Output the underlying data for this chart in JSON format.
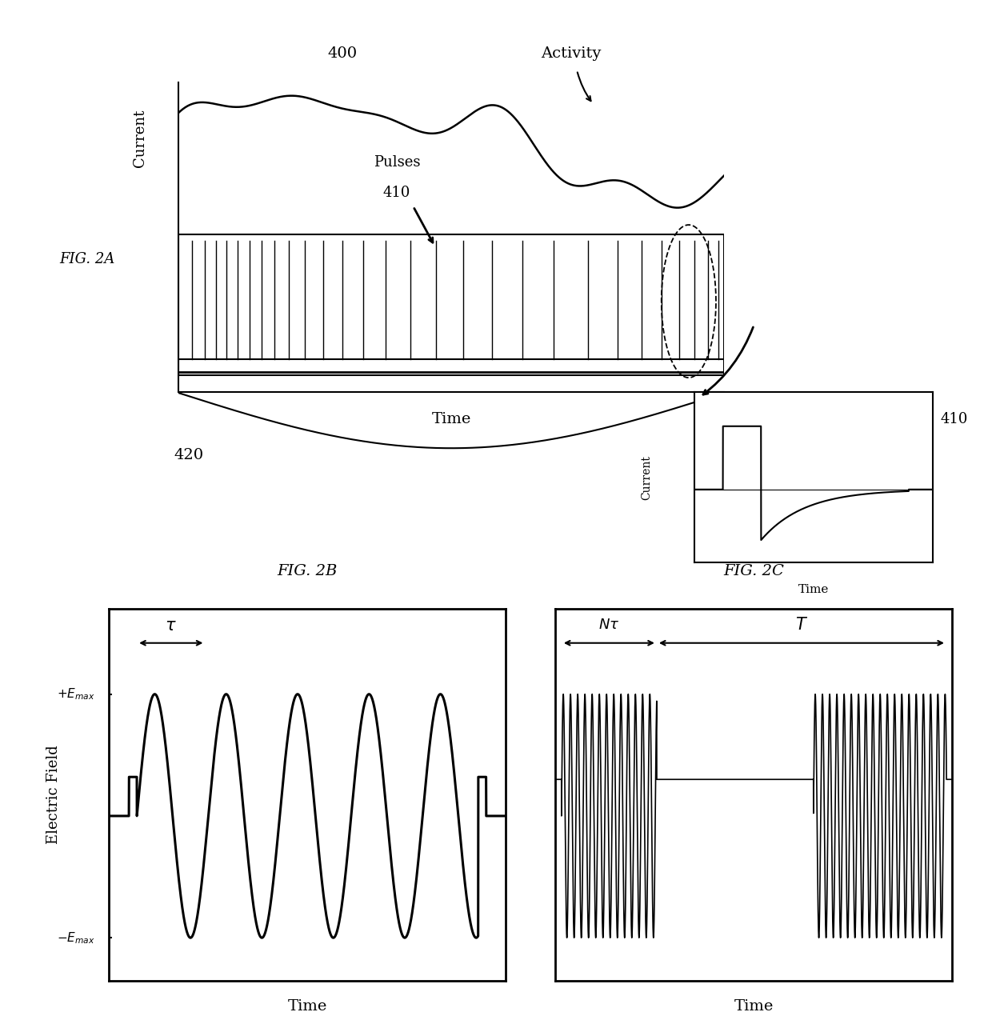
{
  "bg_color": "#ffffff",
  "line_color": "#000000",
  "fig2a_label": "FIG. 2A",
  "fig2b_label": "FIG. 2B",
  "fig2c_label": "FIG. 2C",
  "label_400": "400",
  "label_410_inset": "410",
  "label_410_pulses": "410",
  "label_420": "420",
  "label_activity": "Activity",
  "label_pulses": "Pulses",
  "label_time": "Time",
  "label_current": "Current",
  "label_electric_field": "Electric Field",
  "label_emax_pos": "$+E_{max}$",
  "label_emax_neg": "$-E_{max}$",
  "label_tau": "$\\tau$",
  "label_Ntau": "$N\\tau$",
  "label_T": "$T$"
}
